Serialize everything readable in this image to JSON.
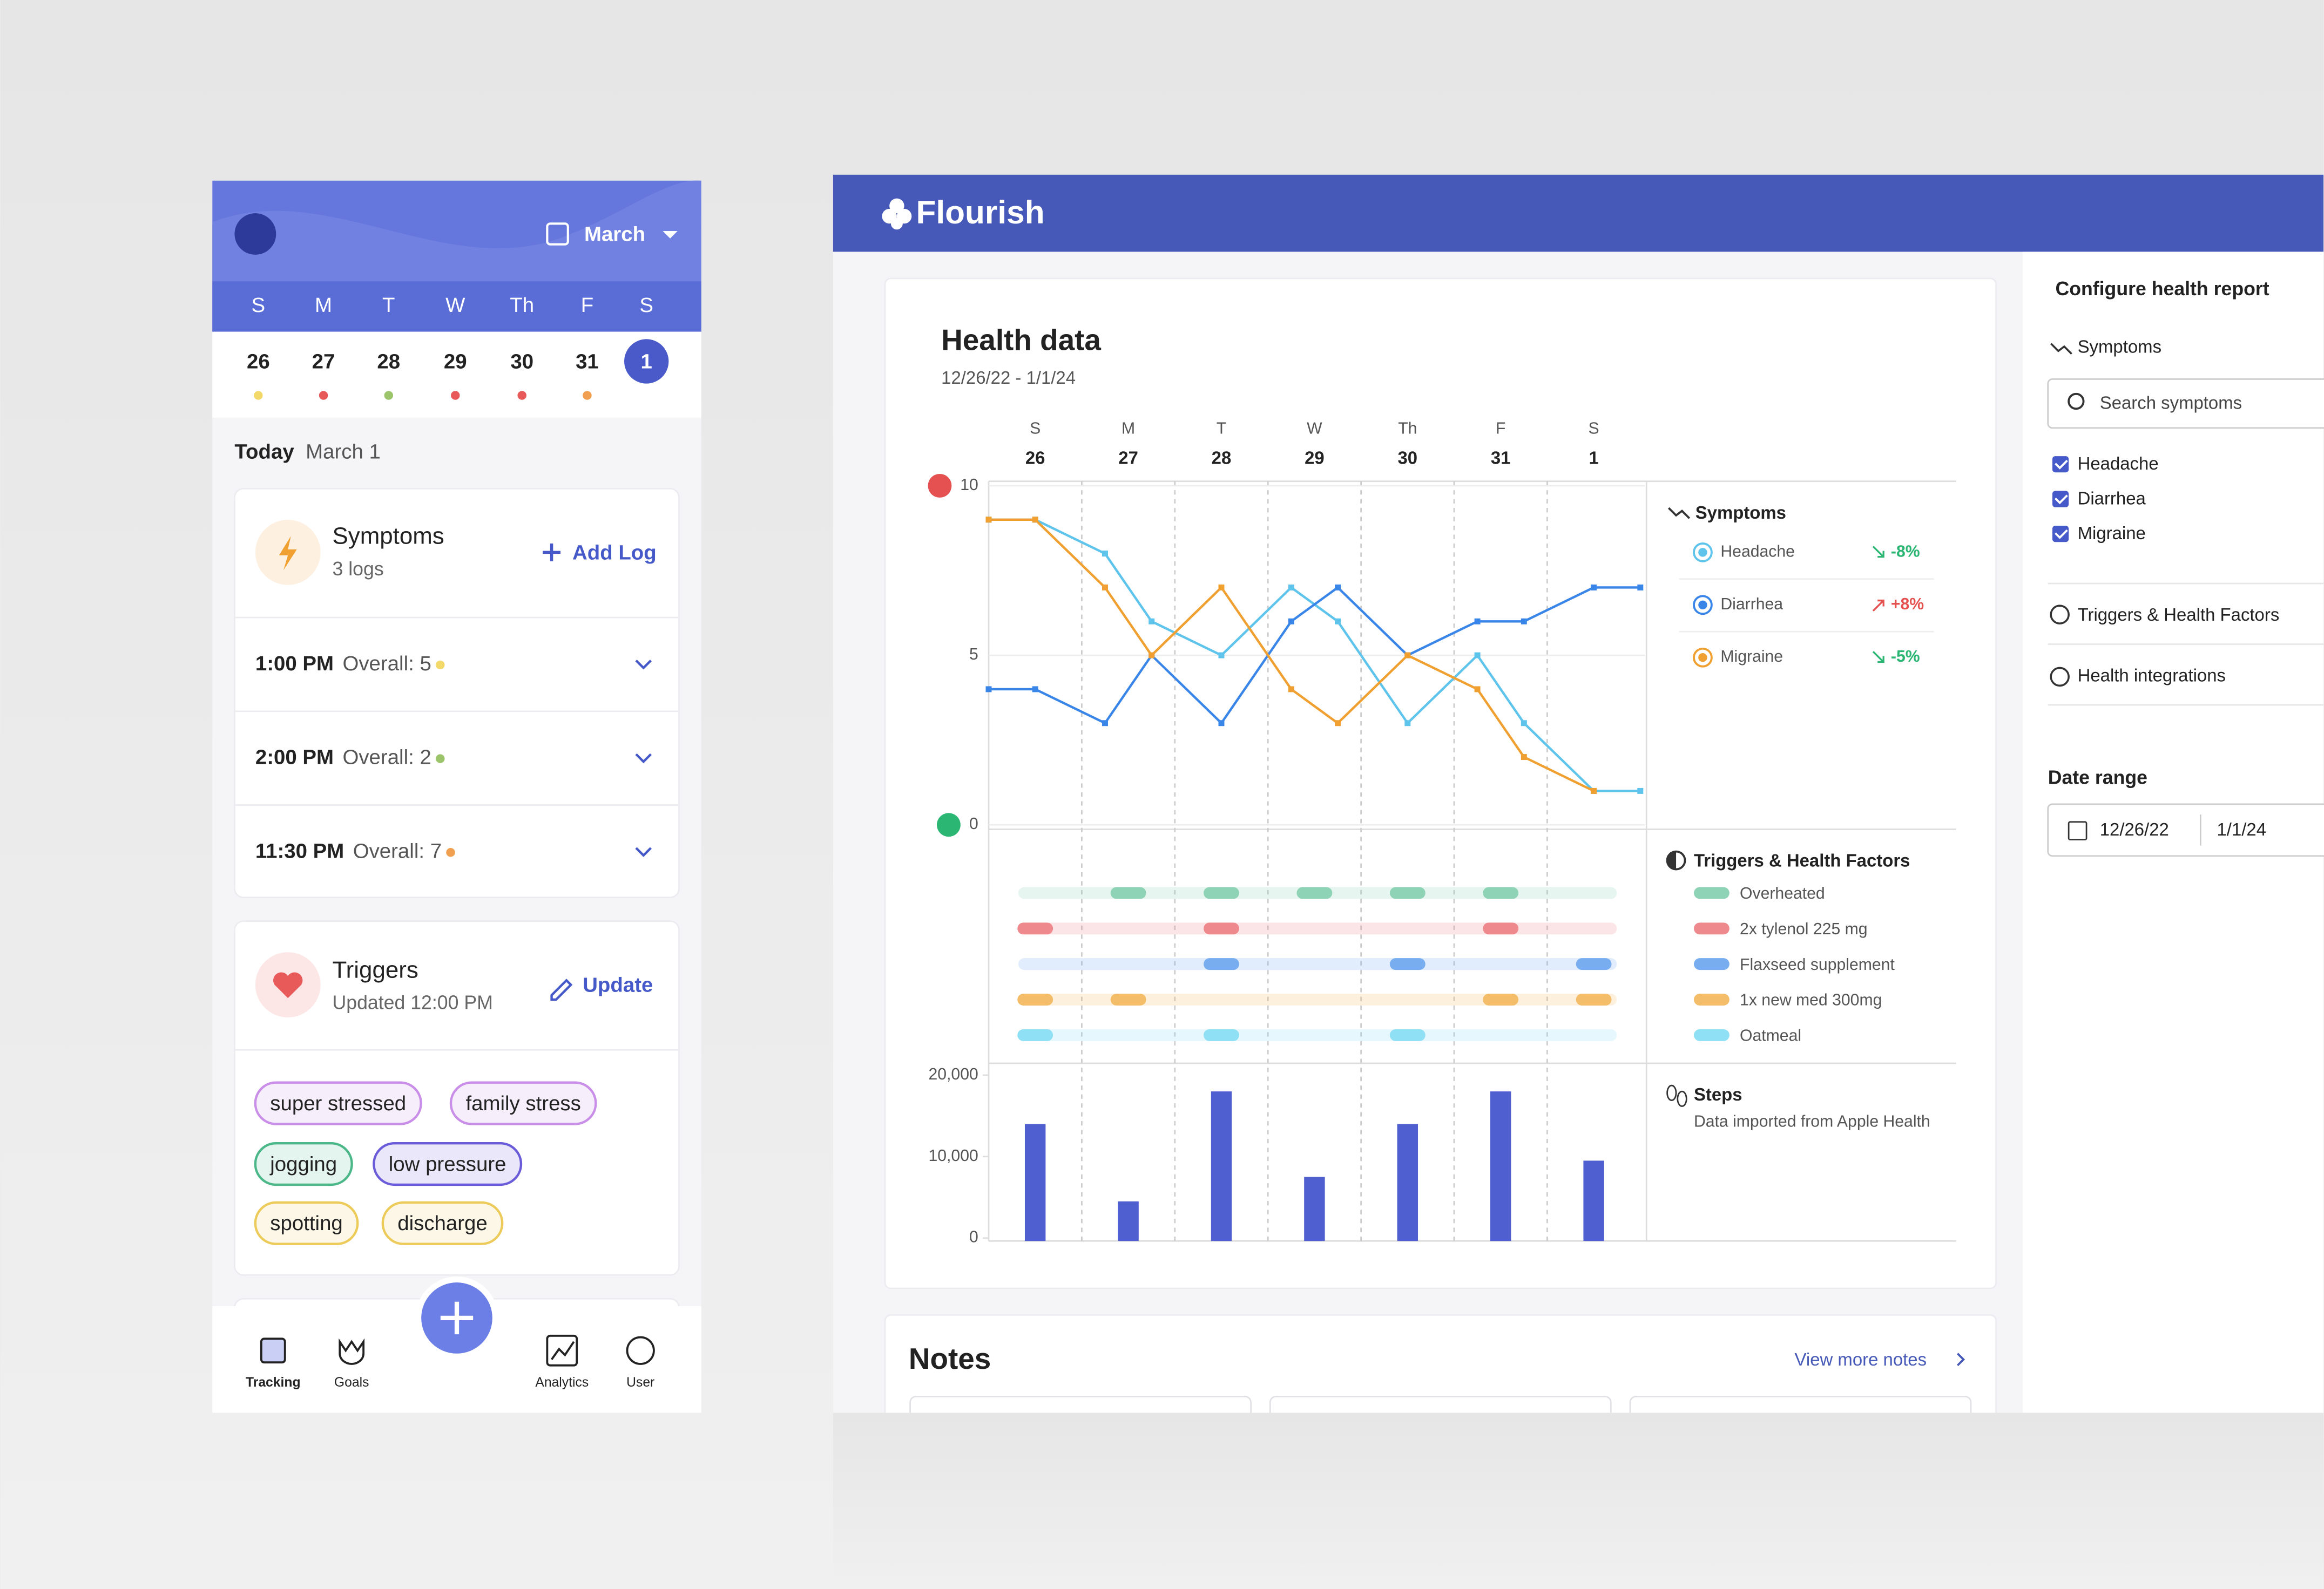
{
  "mobile": {
    "month": "March",
    "weekdays": [
      "S",
      "M",
      "T",
      "W",
      "Th",
      "F",
      "S"
    ],
    "dates": [
      "26",
      "27",
      "28",
      "29",
      "30",
      "31",
      "1"
    ],
    "today": "Today",
    "today_date": "March 1",
    "symptoms": {
      "title": "Symptoms",
      "count": "3 logs",
      "action": "Add Log",
      "logs": [
        {
          "time": "1:00 PM",
          "overall": "Overall: 5",
          "color": "#f3d86a"
        },
        {
          "time": "2:00 PM",
          "overall": "Overall: 2",
          "color": "#9cc46a"
        },
        {
          "time": "11:30 PM",
          "overall": "Overall: 7",
          "color": "#f0a050"
        }
      ]
    },
    "triggers": {
      "title": "Triggers",
      "updated": "Updated 12:00 PM",
      "action": "Update",
      "tags": [
        {
          "label": "super stressed",
          "color": "#c98ee8"
        },
        {
          "label": "family stress",
          "color": "#c98ee8"
        },
        {
          "label": "jogging",
          "color": "#4cb88a"
        },
        {
          "label": "low pressure",
          "color": "#6a5cd8"
        },
        {
          "label": "spotting",
          "color": "#eccb5a"
        },
        {
          "label": "discharge",
          "color": "#eccb5a"
        }
      ]
    },
    "nav": [
      "Tracking",
      "Goals",
      "Analytics",
      "User"
    ]
  },
  "header": {
    "brand": "Flourish"
  },
  "health": {
    "title": "Health data",
    "range": "12/26/22 - 1/1/24",
    "triggers_chart": {
      "title": "Triggers & Health Factors",
      "rows": [
        {
          "name": "Overheated",
          "color": "#8fd3b6",
          "days": [
            1,
            2,
            3,
            4,
            5
          ]
        },
        {
          "name": "2x tylenol 225 mg",
          "color": "#ee8a8e",
          "days": [
            0,
            2,
            5
          ]
        },
        {
          "name": "Flaxseed supplement",
          "color": "#78aef0",
          "days": [
            2,
            4,
            6
          ]
        },
        {
          "name": "1x new med 300mg",
          "color": "#f4bd6a",
          "days": [
            0,
            1,
            5,
            6
          ]
        },
        {
          "name": "Oatmeal",
          "color": "#8fe0f4",
          "days": [
            0,
            2,
            4
          ]
        }
      ]
    }
  },
  "chart_data": [
    {
      "type": "line",
      "title": "Symptoms",
      "weekdays": [
        "S",
        "M",
        "T",
        "W",
        "Th",
        "F",
        "S"
      ],
      "xlim": [
        -0.5,
        6.55
      ],
      "xticks": [
        {
          "value": 0,
          "label": "26"
        },
        {
          "value": 1,
          "label": "27"
        },
        {
          "value": 2,
          "label": "28"
        },
        {
          "value": 3,
          "label": "29"
        },
        {
          "value": 4,
          "label": "30"
        },
        {
          "value": 5,
          "label": "31"
        },
        {
          "value": 6,
          "label": "1"
        }
      ],
      "ylim": [
        0,
        10
      ],
      "yticks": [
        0,
        5,
        10
      ],
      "grid": true,
      "series": [
        {
          "name": "Headache",
          "change": "-8%",
          "change_color": "#2bb673",
          "color": "#5ec4ec",
          "x": [
            -0.5,
            0,
            0.75,
            1.25,
            2,
            2.75,
            3.25,
            4,
            4.75,
            5.25,
            6,
            6.5
          ],
          "values": [
            9,
            9,
            8,
            6,
            5,
            7,
            6,
            3,
            5,
            3,
            1,
            1
          ]
        },
        {
          "name": "Diarrhea",
          "change": "+8%",
          "change_color": "#e55050",
          "color": "#3a86e8",
          "x": [
            -0.5,
            0,
            0.75,
            1.25,
            2,
            2.75,
            3.25,
            4,
            4.75,
            5.25,
            6,
            6.5
          ],
          "values": [
            4,
            4,
            3,
            5,
            3,
            6,
            7,
            5,
            6,
            6,
            7,
            7
          ]
        },
        {
          "name": "Migraine",
          "change": "-5%",
          "change_color": "#2bb673",
          "color": "#f0a030",
          "x": [
            -0.5,
            0,
            0.75,
            1.25,
            2,
            2.75,
            3.25,
            4,
            4.75,
            5.25,
            6
          ],
          "values": [
            9,
            9,
            7,
            5,
            7,
            4,
            3,
            5,
            4,
            2,
            1
          ]
        }
      ]
    },
    {
      "type": "bar",
      "title": "Steps",
      "subtitle": "Data imported from Apple Health",
      "color": "#4f5fd0",
      "values": [
        14000,
        4500,
        18000,
        7500,
        14000,
        18000,
        9500
      ],
      "ylim": [
        0,
        20000
      ],
      "yticks": [
        0,
        {
          "value": 10000,
          "label": "10,000"
        },
        {
          "value": 20000,
          "label": "20,000"
        }
      ]
    }
  ],
  "config": {
    "title": "Configure health report",
    "symptoms": "Symptoms",
    "search": "Search symptoms",
    "checks": [
      "Headache",
      "Diarrhea",
      "Migraine"
    ],
    "triggers": "Triggers & Health Factors",
    "integrations": "Health integrations",
    "date_range": "Date range",
    "start": "12/26/22",
    "end": "1/1/24"
  },
  "notes": {
    "title": "Notes",
    "link": "View more notes"
  }
}
